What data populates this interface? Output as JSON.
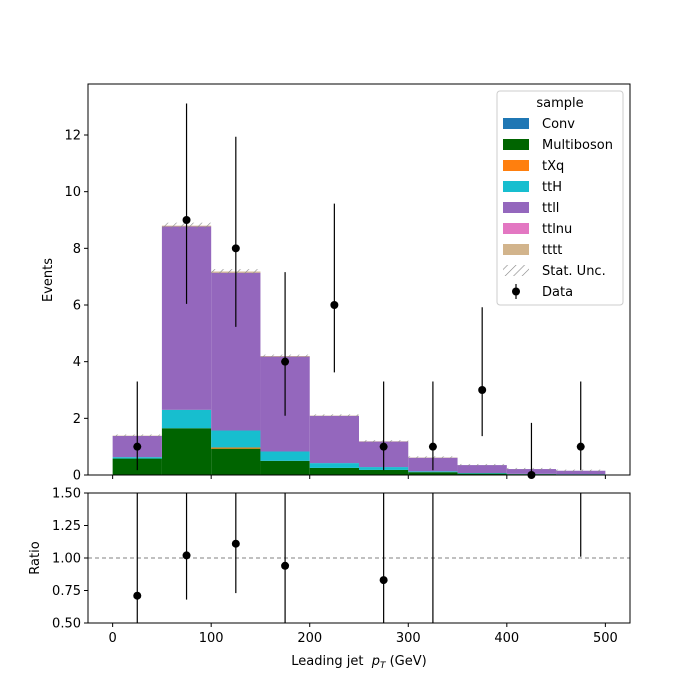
{
  "chart_data": {
    "type": "bar",
    "stacked": true,
    "histogram": true,
    "bin_edges": [
      0,
      50,
      100,
      150,
      200,
      250,
      300,
      350,
      400,
      450,
      500
    ],
    "xlabel": "Leading jet  p_T (GeV)",
    "xlabel_parts": {
      "prefix": "Leading jet  ",
      "var": "p",
      "sub": "T",
      "suffix": " (GeV)"
    },
    "xlim": [
      -25,
      525
    ],
    "x_ticks": [
      0,
      100,
      200,
      300,
      400,
      500
    ],
    "main": {
      "ylabel": "Events",
      "ylim": [
        0,
        13.8
      ],
      "y_ticks": [
        0,
        2,
        4,
        6,
        8,
        10,
        12
      ]
    },
    "ratio": {
      "ylabel": "Ratio",
      "ylim": [
        0.5,
        1.5
      ],
      "y_ticks": [
        "0.50",
        "0.75",
        "1.00",
        "1.25",
        "1.50"
      ],
      "reference_line": 1.0,
      "x": [
        25,
        75,
        125,
        175,
        275
      ],
      "values": [
        0.71,
        1.02,
        1.11,
        0.94,
        0.83
      ],
      "err_low": [
        0.71,
        0.34,
        0.38,
        0.5,
        0.83
      ],
      "err_high": [
        1.0,
        0.5,
        0.5,
        0.8,
        0.9
      ],
      "open_ended": [
        {
          "x": 325,
          "y_low": 0.5,
          "y_high": 1.5
        },
        {
          "x": 475,
          "y_low": 1.01,
          "y_high": 1.5
        }
      ]
    },
    "series": [
      {
        "name": "Conv",
        "color": "#1f77b4",
        "values": [
          0,
          0,
          0,
          0,
          0,
          0,
          0,
          0,
          0,
          0
        ]
      },
      {
        "name": "Multiboson",
        "color": "#006400",
        "values": [
          0.58,
          1.65,
          0.93,
          0.5,
          0.25,
          0.18,
          0.1,
          0.05,
          0.03,
          0.02
        ]
      },
      {
        "name": "tXq",
        "color": "#ff7f0e",
        "values": [
          0,
          0,
          0.04,
          0,
          0,
          0,
          0,
          0,
          0,
          0
        ]
      },
      {
        "name": "ttH",
        "color": "#17becf",
        "values": [
          0.05,
          0.65,
          0.6,
          0.33,
          0.17,
          0.1,
          0.03,
          0.02,
          0.01,
          0.01
        ]
      },
      {
        "name": "ttll",
        "color": "#9467bd",
        "values": [
          0.75,
          6.47,
          5.57,
          3.35,
          1.67,
          0.9,
          0.48,
          0.28,
          0.17,
          0.12
        ]
      },
      {
        "name": "ttlnu",
        "color": "#e377c2",
        "values": [
          0,
          0,
          0,
          0,
          0,
          0,
          0,
          0,
          0,
          0
        ]
      },
      {
        "name": "tttt",
        "color": "#d2b48c",
        "values": [
          0.01,
          0.03,
          0.04,
          0.02,
          0.01,
          0.01,
          0.01,
          0,
          0,
          0
        ]
      }
    ],
    "data": {
      "name": "Data",
      "x": [
        25,
        75,
        125,
        175,
        225,
        275,
        325,
        375,
        425,
        475
      ],
      "values": [
        1,
        9,
        8,
        4,
        6,
        1,
        1,
        3,
        0,
        1
      ],
      "err_low": [
        0.83,
        2.96,
        2.77,
        1.91,
        2.38,
        0.83,
        0.83,
        1.63,
        0,
        0.83
      ],
      "err_high": [
        2.3,
        4.11,
        3.94,
        3.16,
        3.58,
        2.3,
        2.3,
        2.92,
        1.84,
        2.3
      ]
    },
    "stat_unc_label": "Stat. Unc.",
    "legend": {
      "title": "sample",
      "placement": "top-right"
    }
  }
}
